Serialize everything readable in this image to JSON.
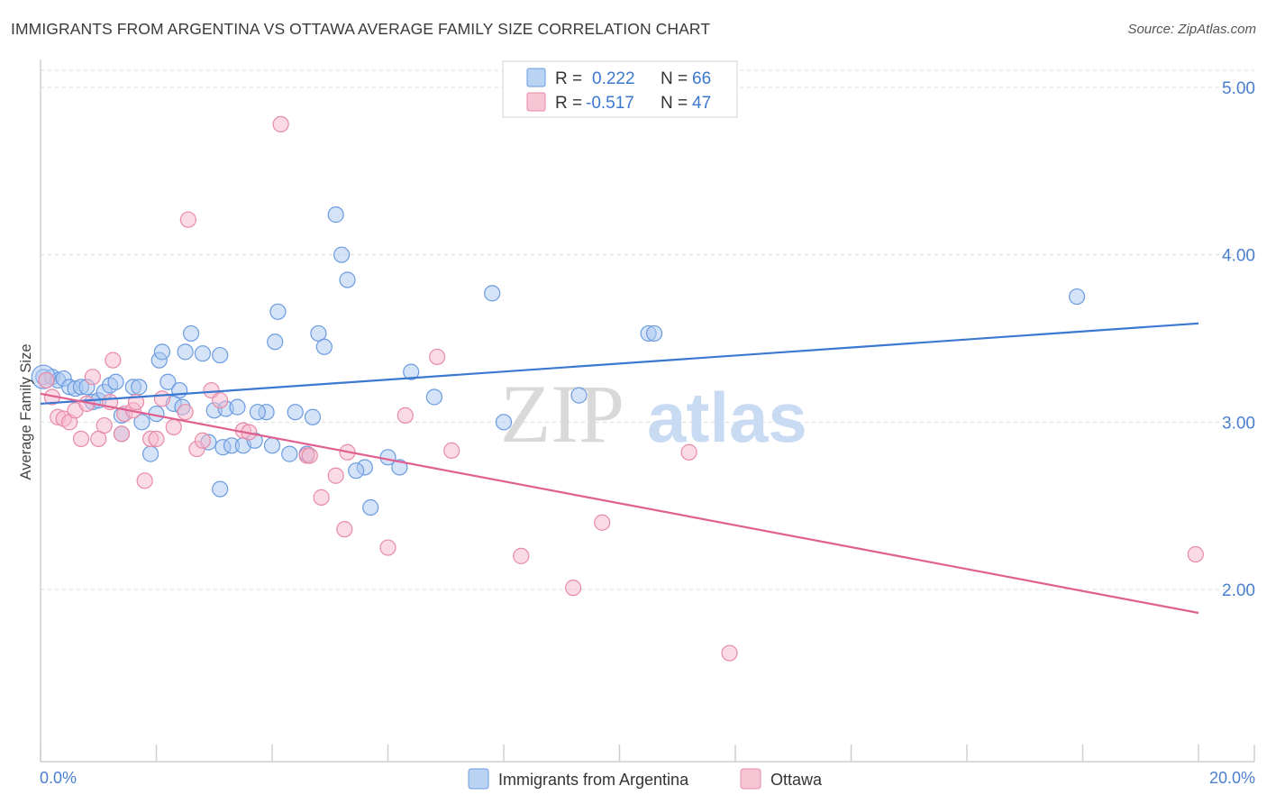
{
  "title": "IMMIGRANTS FROM ARGENTINA VS OTTAWA AVERAGE FAMILY SIZE CORRELATION CHART",
  "source": "Source: ZipAtlas.com",
  "watermark": {
    "part1": "ZIP",
    "part2": "atlas"
  },
  "colors": {
    "blue_fill": "#a9c8f0",
    "blue_stroke": "#6b9be0",
    "blue_line": "#3b78d0",
    "pink_fill": "#f5b8cb",
    "pink_stroke": "#e88aa8",
    "pink_line": "#e0608f",
    "tick_text": "#4a7fcf"
  },
  "legend": {
    "r_label": "R =",
    "n_label": "N =",
    "series": [
      {
        "r": "0.222",
        "n": "66"
      },
      {
        "r": "-0.517",
        "n": "47"
      }
    ]
  },
  "chart_data": {
    "type": "scatter",
    "title": "IMMIGRANTS FROM ARGENTINA VS OTTAWA AVERAGE FAMILY SIZE CORRELATION CHART",
    "xlabel": "",
    "ylabel": "Average Family Size",
    "xlim": [
      0,
      20
    ],
    "ylim": [
      1.1,
      5.15
    ],
    "x_tick_labels": [
      "0.0%",
      "20.0%"
    ],
    "y_ticks": [
      2.0,
      3.0,
      4.0,
      5.0
    ],
    "y_tick_labels": [
      "2.00",
      "3.00",
      "4.00",
      "5.00"
    ],
    "grid": "horizontal dashed",
    "legend_position": "top-center",
    "series": [
      {
        "name": "Immigrants from Argentina",
        "color": "#6b9be0",
        "trend": {
          "x": [
            0,
            20
          ],
          "y": [
            3.11,
            3.59
          ]
        },
        "points": [
          [
            0.05,
            3.27
          ],
          [
            0.2,
            3.27
          ],
          [
            0.3,
            3.25
          ],
          [
            0.4,
            3.26
          ],
          [
            0.5,
            3.21
          ],
          [
            0.6,
            3.2
          ],
          [
            0.7,
            3.21
          ],
          [
            0.8,
            3.21
          ],
          [
            0.9,
            3.12
          ],
          [
            1.0,
            3.13
          ],
          [
            1.1,
            3.18
          ],
          [
            1.2,
            3.22
          ],
          [
            1.3,
            3.24
          ],
          [
            1.4,
            3.04
          ],
          [
            1.4,
            2.93
          ],
          [
            1.6,
            3.21
          ],
          [
            1.7,
            3.21
          ],
          [
            1.75,
            3.0
          ],
          [
            1.9,
            2.81
          ],
          [
            2.0,
            3.05
          ],
          [
            2.05,
            3.37
          ],
          [
            2.1,
            3.42
          ],
          [
            2.2,
            3.24
          ],
          [
            2.3,
            3.11
          ],
          [
            2.4,
            3.19
          ],
          [
            2.5,
            3.42
          ],
          [
            2.6,
            3.53
          ],
          [
            2.8,
            3.41
          ],
          [
            2.9,
            2.88
          ],
          [
            3.0,
            3.07
          ],
          [
            3.1,
            3.4
          ],
          [
            3.2,
            3.08
          ],
          [
            3.1,
            2.6
          ],
          [
            3.15,
            2.85
          ],
          [
            3.3,
            2.86
          ],
          [
            3.4,
            3.09
          ],
          [
            3.5,
            2.86
          ],
          [
            3.7,
            2.89
          ],
          [
            3.9,
            3.06
          ],
          [
            4.0,
            2.86
          ],
          [
            4.05,
            3.48
          ],
          [
            4.1,
            3.66
          ],
          [
            4.3,
            2.81
          ],
          [
            4.4,
            3.06
          ],
          [
            4.6,
            2.81
          ],
          [
            4.7,
            3.03
          ],
          [
            4.8,
            3.53
          ],
          [
            4.9,
            3.45
          ],
          [
            5.1,
            4.24
          ],
          [
            5.2,
            4.0
          ],
          [
            5.3,
            3.85
          ],
          [
            5.6,
            2.73
          ],
          [
            5.7,
            2.49
          ],
          [
            6.0,
            2.79
          ],
          [
            6.2,
            2.73
          ],
          [
            6.4,
            3.3
          ],
          [
            6.8,
            3.15
          ],
          [
            7.8,
            3.77
          ],
          [
            8.0,
            3.0
          ],
          [
            9.3,
            3.16
          ],
          [
            10.5,
            3.53
          ],
          [
            10.6,
            3.53
          ],
          [
            17.9,
            3.75
          ],
          [
            5.45,
            2.71
          ],
          [
            3.75,
            3.06
          ],
          [
            2.45,
            3.09
          ]
        ]
      },
      {
        "name": "Ottawa",
        "color": "#e88aa8",
        "trend": {
          "x": [
            0,
            20
          ],
          "y": [
            3.17,
            1.86
          ]
        },
        "points": [
          [
            0.1,
            3.25
          ],
          [
            0.2,
            3.15
          ],
          [
            0.3,
            3.03
          ],
          [
            0.4,
            3.02
          ],
          [
            0.5,
            3.0
          ],
          [
            0.6,
            3.07
          ],
          [
            0.7,
            2.9
          ],
          [
            0.8,
            3.11
          ],
          [
            0.9,
            3.27
          ],
          [
            1.0,
            2.9
          ],
          [
            1.1,
            2.98
          ],
          [
            1.2,
            3.12
          ],
          [
            1.25,
            3.37
          ],
          [
            1.4,
            2.93
          ],
          [
            1.45,
            3.05
          ],
          [
            1.6,
            3.07
          ],
          [
            1.65,
            3.12
          ],
          [
            1.8,
            2.65
          ],
          [
            1.9,
            2.9
          ],
          [
            2.0,
            2.9
          ],
          [
            2.1,
            3.14
          ],
          [
            2.3,
            2.97
          ],
          [
            2.5,
            3.06
          ],
          [
            2.55,
            4.21
          ],
          [
            2.7,
            2.84
          ],
          [
            2.8,
            2.89
          ],
          [
            2.95,
            3.19
          ],
          [
            3.1,
            3.13
          ],
          [
            3.5,
            2.95
          ],
          [
            3.6,
            2.94
          ],
          [
            4.15,
            4.78
          ],
          [
            4.6,
            2.8
          ],
          [
            4.65,
            2.8
          ],
          [
            4.85,
            2.55
          ],
          [
            5.1,
            2.68
          ],
          [
            5.25,
            2.36
          ],
          [
            5.3,
            2.82
          ],
          [
            6.0,
            2.25
          ],
          [
            6.3,
            3.04
          ],
          [
            6.85,
            3.39
          ],
          [
            7.1,
            2.83
          ],
          [
            8.3,
            2.2
          ],
          [
            9.2,
            2.01
          ],
          [
            9.7,
            2.4
          ],
          [
            11.2,
            2.82
          ],
          [
            11.9,
            1.62
          ],
          [
            19.95,
            2.21
          ]
        ]
      }
    ]
  },
  "bottom_legend": [
    "Immigrants from Argentina",
    "Ottawa"
  ]
}
